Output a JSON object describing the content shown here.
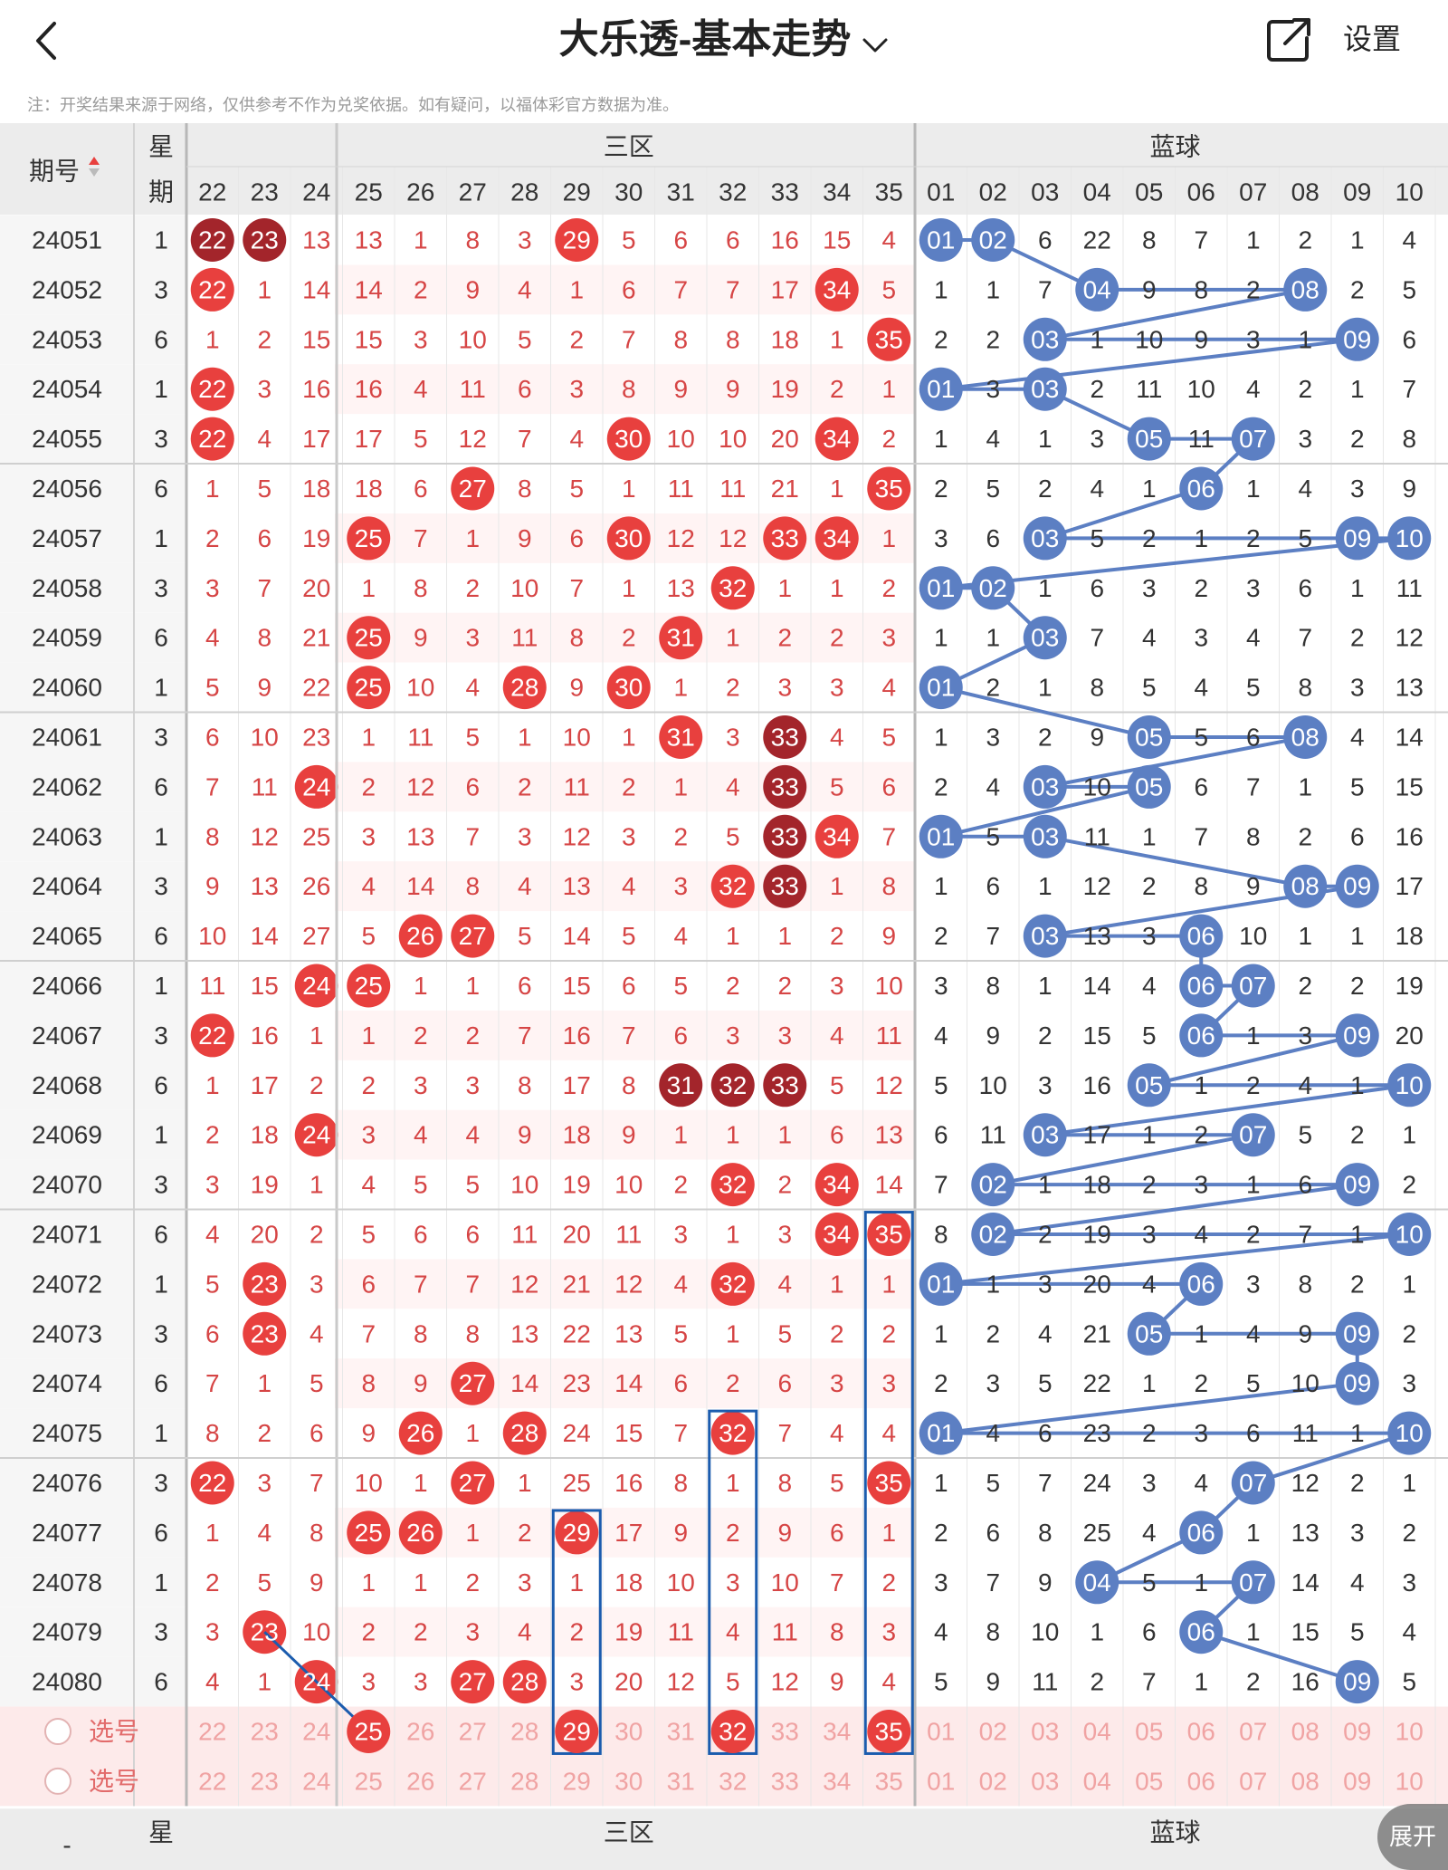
{
  "header": {
    "title": "大乐透-基本走势",
    "settings_label": "设置",
    "back_icon": "back-arrow-icon",
    "share_icon": "share-icon",
    "dropdown_icon": "chevron-down-icon"
  },
  "note": "注：开奖结果来源于网络，仅供参考不作为兑奖依据。如有疑问，以福体彩官方数据为准。",
  "table": {
    "issue_header": "期号",
    "weekday_header_1": "星",
    "weekday_header_2": "期",
    "zone_label": "三区",
    "blue_label": "蓝球",
    "front_cols": [
      "22",
      "23",
      "24",
      "25",
      "26",
      "27",
      "28",
      "29",
      "30",
      "31",
      "32",
      "33",
      "34",
      "35"
    ],
    "blue_cols": [
      "01",
      "02",
      "03",
      "04",
      "05",
      "06",
      "07",
      "08",
      "09",
      "10"
    ],
    "rows": [
      {
        "issue": "24051",
        "wd": "1",
        "front": [
          "22",
          "23",
          "13",
          "13",
          "1",
          "8",
          "3",
          "29",
          "5",
          "6",
          "6",
          "16",
          "15",
          "4"
        ],
        "blue": [
          "01",
          "02",
          "6",
          "22",
          "8",
          "7",
          "1",
          "2",
          "1",
          "4"
        ]
      },
      {
        "issue": "24052",
        "wd": "3",
        "front": [
          "22",
          "1",
          "14",
          "14",
          "2",
          "9",
          "4",
          "1",
          "6",
          "7",
          "7",
          "17",
          "34",
          "5"
        ],
        "blue": [
          "1",
          "1",
          "7",
          "04",
          "9",
          "8",
          "2",
          "08",
          "2",
          "5"
        ]
      },
      {
        "issue": "24053",
        "wd": "6",
        "front": [
          "1",
          "2",
          "15",
          "15",
          "3",
          "10",
          "5",
          "2",
          "7",
          "8",
          "8",
          "18",
          "1",
          "35"
        ],
        "blue": [
          "2",
          "2",
          "03",
          "1",
          "10",
          "9",
          "3",
          "1",
          "09",
          "6"
        ]
      },
      {
        "issue": "24054",
        "wd": "1",
        "front": [
          "22",
          "3",
          "16",
          "16",
          "4",
          "11",
          "6",
          "3",
          "8",
          "9",
          "9",
          "19",
          "2",
          "1"
        ],
        "blue": [
          "01",
          "3",
          "03",
          "2",
          "11",
          "10",
          "4",
          "2",
          "1",
          "7"
        ]
      },
      {
        "issue": "24055",
        "wd": "3",
        "front": [
          "22",
          "4",
          "17",
          "17",
          "5",
          "12",
          "7",
          "4",
          "30",
          "10",
          "10",
          "20",
          "34",
          "2"
        ],
        "blue": [
          "1",
          "4",
          "1",
          "3",
          "05",
          "11",
          "07",
          "3",
          "2",
          "8"
        ]
      },
      {
        "issue": "24056",
        "wd": "6",
        "front": [
          "1",
          "5",
          "18",
          "18",
          "6",
          "27",
          "8",
          "5",
          "1",
          "11",
          "11",
          "21",
          "1",
          "35"
        ],
        "blue": [
          "2",
          "5",
          "2",
          "4",
          "1",
          "06",
          "1",
          "4",
          "3",
          "9"
        ]
      },
      {
        "issue": "24057",
        "wd": "1",
        "front": [
          "2",
          "6",
          "19",
          "25",
          "7",
          "1",
          "9",
          "6",
          "30",
          "12",
          "12",
          "33",
          "34",
          "1"
        ],
        "blue": [
          "3",
          "6",
          "03",
          "5",
          "2",
          "1",
          "2",
          "5",
          "09",
          "10"
        ]
      },
      {
        "issue": "24058",
        "wd": "3",
        "front": [
          "3",
          "7",
          "20",
          "1",
          "8",
          "2",
          "10",
          "7",
          "1",
          "13",
          "32",
          "1",
          "1",
          "2"
        ],
        "blue": [
          "01",
          "02",
          "1",
          "6",
          "3",
          "2",
          "3",
          "6",
          "1",
          "11"
        ]
      },
      {
        "issue": "24059",
        "wd": "6",
        "front": [
          "4",
          "8",
          "21",
          "25",
          "9",
          "3",
          "11",
          "8",
          "2",
          "31",
          "1",
          "2",
          "2",
          "3"
        ],
        "blue": [
          "1",
          "1",
          "03",
          "7",
          "4",
          "3",
          "4",
          "7",
          "2",
          "12"
        ]
      },
      {
        "issue": "24060",
        "wd": "1",
        "front": [
          "5",
          "9",
          "22",
          "25",
          "10",
          "4",
          "28",
          "9",
          "30",
          "1",
          "2",
          "3",
          "3",
          "4"
        ],
        "blue": [
          "01",
          "2",
          "1",
          "8",
          "5",
          "4",
          "5",
          "8",
          "3",
          "13"
        ]
      },
      {
        "issue": "24061",
        "wd": "3",
        "front": [
          "6",
          "10",
          "23",
          "1",
          "11",
          "5",
          "1",
          "10",
          "1",
          "31",
          "3",
          "33",
          "4",
          "5"
        ],
        "blue": [
          "1",
          "3",
          "2",
          "9",
          "05",
          "5",
          "6",
          "08",
          "4",
          "14"
        ]
      },
      {
        "issue": "24062",
        "wd": "6",
        "front": [
          "7",
          "11",
          "24",
          "2",
          "12",
          "6",
          "2",
          "11",
          "2",
          "1",
          "4",
          "33",
          "5",
          "6"
        ],
        "blue": [
          "2",
          "4",
          "03",
          "10",
          "05",
          "6",
          "7",
          "1",
          "5",
          "15"
        ]
      },
      {
        "issue": "24063",
        "wd": "1",
        "front": [
          "8",
          "12",
          "25",
          "3",
          "13",
          "7",
          "3",
          "12",
          "3",
          "2",
          "5",
          "33",
          "34",
          "7"
        ],
        "blue": [
          "01",
          "5",
          "03",
          "11",
          "1",
          "7",
          "8",
          "2",
          "6",
          "16"
        ]
      },
      {
        "issue": "24064",
        "wd": "3",
        "front": [
          "9",
          "13",
          "26",
          "4",
          "14",
          "8",
          "4",
          "13",
          "4",
          "3",
          "32",
          "33",
          "1",
          "8"
        ],
        "blue": [
          "1",
          "6",
          "1",
          "12",
          "2",
          "8",
          "9",
          "08",
          "09",
          "17"
        ]
      },
      {
        "issue": "24065",
        "wd": "6",
        "front": [
          "10",
          "14",
          "27",
          "5",
          "26",
          "27",
          "5",
          "14",
          "5",
          "4",
          "1",
          "1",
          "2",
          "9"
        ],
        "blue": [
          "2",
          "7",
          "03",
          "13",
          "3",
          "06",
          "10",
          "1",
          "1",
          "18"
        ]
      },
      {
        "issue": "24066",
        "wd": "1",
        "front": [
          "11",
          "15",
          "24",
          "25",
          "1",
          "1",
          "6",
          "15",
          "6",
          "5",
          "2",
          "2",
          "3",
          "10"
        ],
        "blue": [
          "3",
          "8",
          "1",
          "14",
          "4",
          "06",
          "07",
          "2",
          "2",
          "19"
        ]
      },
      {
        "issue": "24067",
        "wd": "3",
        "front": [
          "22",
          "16",
          "1",
          "1",
          "2",
          "2",
          "7",
          "16",
          "7",
          "6",
          "3",
          "3",
          "4",
          "11"
        ],
        "blue": [
          "4",
          "9",
          "2",
          "15",
          "5",
          "06",
          "1",
          "3",
          "09",
          "20"
        ]
      },
      {
        "issue": "24068",
        "wd": "6",
        "front": [
          "1",
          "17",
          "2",
          "2",
          "3",
          "3",
          "8",
          "17",
          "8",
          "31",
          "32",
          "33",
          "5",
          "12"
        ],
        "blue": [
          "5",
          "10",
          "3",
          "16",
          "05",
          "1",
          "2",
          "4",
          "1",
          "10"
        ]
      },
      {
        "issue": "24069",
        "wd": "1",
        "front": [
          "2",
          "18",
          "24",
          "3",
          "4",
          "4",
          "9",
          "18",
          "9",
          "1",
          "1",
          "1",
          "6",
          "13"
        ],
        "blue": [
          "6",
          "11",
          "03",
          "17",
          "1",
          "2",
          "07",
          "5",
          "2",
          "1"
        ]
      },
      {
        "issue": "24070",
        "wd": "3",
        "front": [
          "3",
          "19",
          "1",
          "4",
          "5",
          "5",
          "10",
          "19",
          "10",
          "2",
          "32",
          "2",
          "34",
          "14"
        ],
        "blue": [
          "7",
          "02",
          "1",
          "18",
          "2",
          "3",
          "1",
          "6",
          "09",
          "2"
        ]
      },
      {
        "issue": "24071",
        "wd": "6",
        "front": [
          "4",
          "20",
          "2",
          "5",
          "6",
          "6",
          "11",
          "20",
          "11",
          "3",
          "1",
          "3",
          "34",
          "35"
        ],
        "blue": [
          "8",
          "02",
          "2",
          "19",
          "3",
          "4",
          "2",
          "7",
          "1",
          "10"
        ]
      },
      {
        "issue": "24072",
        "wd": "1",
        "front": [
          "5",
          "23",
          "3",
          "6",
          "7",
          "7",
          "12",
          "21",
          "12",
          "4",
          "32",
          "4",
          "1",
          "1"
        ],
        "blue": [
          "01",
          "1",
          "3",
          "20",
          "4",
          "06",
          "3",
          "8",
          "2",
          "1"
        ]
      },
      {
        "issue": "24073",
        "wd": "3",
        "front": [
          "6",
          "23",
          "4",
          "7",
          "8",
          "8",
          "13",
          "22",
          "13",
          "5",
          "1",
          "5",
          "2",
          "2"
        ],
        "blue": [
          "1",
          "2",
          "4",
          "21",
          "05",
          "1",
          "4",
          "9",
          "09",
          "2"
        ]
      },
      {
        "issue": "24074",
        "wd": "6",
        "front": [
          "7",
          "1",
          "5",
          "8",
          "9",
          "27",
          "14",
          "23",
          "14",
          "6",
          "2",
          "6",
          "3",
          "3"
        ],
        "blue": [
          "2",
          "3",
          "5",
          "22",
          "1",
          "2",
          "5",
          "10",
          "09",
          "3"
        ]
      },
      {
        "issue": "24075",
        "wd": "1",
        "front": [
          "8",
          "2",
          "6",
          "9",
          "26",
          "1",
          "28",
          "24",
          "15",
          "7",
          "32",
          "7",
          "4",
          "4"
        ],
        "blue": [
          "01",
          "4",
          "6",
          "23",
          "2",
          "3",
          "6",
          "11",
          "1",
          "10"
        ]
      },
      {
        "issue": "24076",
        "wd": "3",
        "front": [
          "22",
          "3",
          "7",
          "10",
          "1",
          "27",
          "1",
          "25",
          "16",
          "8",
          "1",
          "8",
          "5",
          "35"
        ],
        "blue": [
          "1",
          "5",
          "7",
          "24",
          "3",
          "4",
          "07",
          "12",
          "2",
          "1"
        ]
      },
      {
        "issue": "24077",
        "wd": "6",
        "front": [
          "1",
          "4",
          "8",
          "25",
          "26",
          "1",
          "2",
          "29",
          "17",
          "9",
          "2",
          "9",
          "6",
          "1"
        ],
        "blue": [
          "2",
          "6",
          "8",
          "25",
          "4",
          "06",
          "1",
          "13",
          "3",
          "2"
        ]
      },
      {
        "issue": "24078",
        "wd": "1",
        "front": [
          "2",
          "5",
          "9",
          "1",
          "1",
          "2",
          "3",
          "1",
          "18",
          "10",
          "3",
          "10",
          "7",
          "2"
        ],
        "blue": [
          "3",
          "7",
          "9",
          "04",
          "5",
          "1",
          "07",
          "14",
          "4",
          "3"
        ]
      },
      {
        "issue": "24079",
        "wd": "3",
        "front": [
          "3",
          "23",
          "10",
          "2",
          "2",
          "3",
          "4",
          "2",
          "19",
          "11",
          "4",
          "11",
          "8",
          "3"
        ],
        "blue": [
          "4",
          "8",
          "10",
          "1",
          "6",
          "06",
          "1",
          "15",
          "5",
          "4"
        ]
      },
      {
        "issue": "24080",
        "wd": "6",
        "front": [
          "4",
          "1",
          "24",
          "3",
          "3",
          "27",
          "28",
          "3",
          "20",
          "12",
          "5",
          "12",
          "9",
          "4"
        ],
        "blue": [
          "5",
          "9",
          "11",
          "2",
          "7",
          "1",
          "2",
          "16",
          "09",
          "5"
        ]
      }
    ],
    "select_label": "选号",
    "select_rows": [
      {
        "front": [
          "22",
          "23",
          "24",
          "25",
          "26",
          "27",
          "28",
          "29",
          "30",
          "31",
          "32",
          "33",
          "34",
          "35"
        ],
        "blue": [
          "01",
          "02",
          "03",
          "04",
          "05",
          "06",
          "07",
          "08",
          "09",
          "10"
        ]
      },
      {
        "front": [
          "22",
          "23",
          "24",
          "25",
          "26",
          "27",
          "28",
          "29",
          "30",
          "31",
          "32",
          "33",
          "34",
          "35"
        ],
        "blue": [
          "01",
          "02",
          "03",
          "04",
          "05",
          "06",
          "07",
          "08",
          "09",
          "10"
        ]
      }
    ],
    "footer_issue": "-"
  },
  "expand_label": "展开",
  "colors": {
    "red": "#e8403e",
    "dark_red": "#a3252b",
    "blue": "#5c7fc3",
    "text_red": "#d64545",
    "frame_blue": "#1b5cae",
    "pink_row": "#fdeaea",
    "gray_header": "#ececec"
  }
}
